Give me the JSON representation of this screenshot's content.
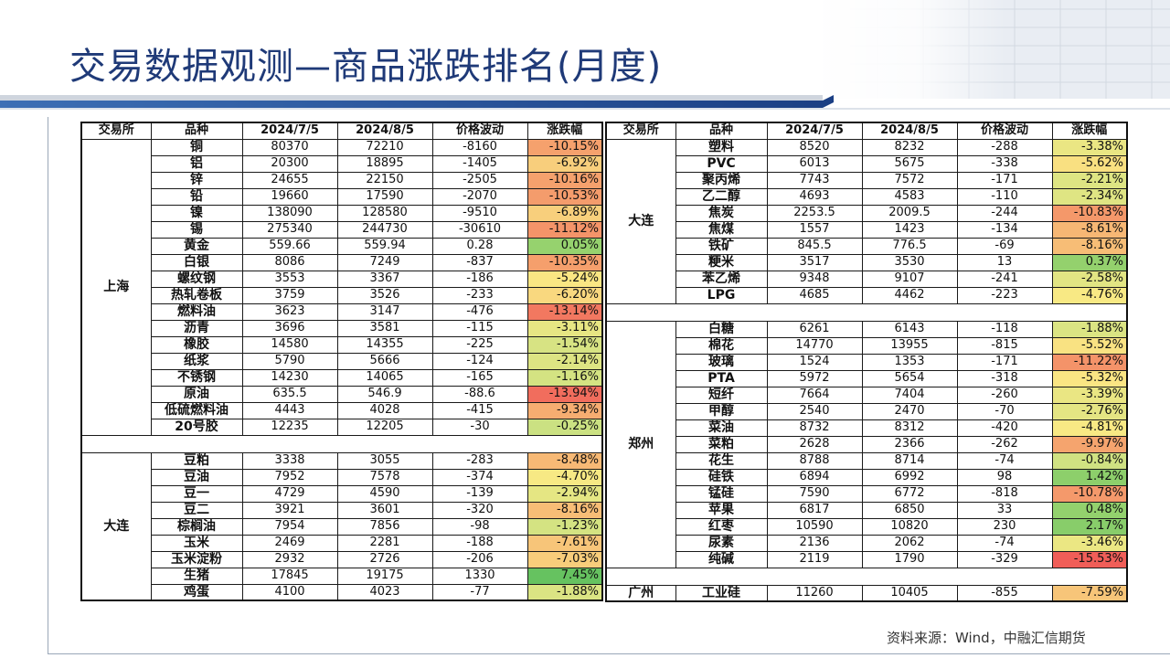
{
  "title": "交易数据观测—商品涨跌排名(月度)",
  "source": "资料来源：Wind，中融汇信期货",
  "headers": [
    "交易所",
    "品种",
    "2024/7/5",
    "2024/8/5",
    "价格波动",
    "涨跌幅"
  ],
  "left_groups": [
    {
      "exchange": "上海",
      "rows": [
        {
          "name": "铜",
          "d1": "80370",
          "d2": "72210",
          "diff": "-8160",
          "pct": "-10.15%",
          "v": -10.15
        },
        {
          "name": "铝",
          "d1": "20300",
          "d2": "18895",
          "diff": "-1405",
          "pct": "-6.92%",
          "v": -6.92
        },
        {
          "name": "锌",
          "d1": "24655",
          "d2": "22150",
          "diff": "-2505",
          "pct": "-10.16%",
          "v": -10.16
        },
        {
          "name": "铅",
          "d1": "19660",
          "d2": "17590",
          "diff": "-2070",
          "pct": "-10.53%",
          "v": -10.53
        },
        {
          "name": "镍",
          "d1": "138090",
          "d2": "128580",
          "diff": "-9510",
          "pct": "-6.89%",
          "v": -6.89
        },
        {
          "name": "锡",
          "d1": "275340",
          "d2": "244730",
          "diff": "-30610",
          "pct": "-11.12%",
          "v": -11.12
        },
        {
          "name": "黄金",
          "d1": "559.66",
          "d2": "559.94",
          "diff": "0.28",
          "pct": "0.05%",
          "v": 0.05
        },
        {
          "name": "白银",
          "d1": "8086",
          "d2": "7249",
          "diff": "-837",
          "pct": "-10.35%",
          "v": -10.35
        },
        {
          "name": "螺纹钢",
          "d1": "3553",
          "d2": "3367",
          "diff": "-186",
          "pct": "-5.24%",
          "v": -5.24
        },
        {
          "name": "热轧卷板",
          "d1": "3759",
          "d2": "3526",
          "diff": "-233",
          "pct": "-6.20%",
          "v": -6.2
        },
        {
          "name": "燃料油",
          "d1": "3623",
          "d2": "3147",
          "diff": "-476",
          "pct": "-13.14%",
          "v": -13.14
        },
        {
          "name": "沥青",
          "d1": "3696",
          "d2": "3581",
          "diff": "-115",
          "pct": "-3.11%",
          "v": -3.11
        },
        {
          "name": "橡胶",
          "d1": "14580",
          "d2": "14355",
          "diff": "-225",
          "pct": "-1.54%",
          "v": -1.54
        },
        {
          "name": "纸浆",
          "d1": "5790",
          "d2": "5666",
          "diff": "-124",
          "pct": "-2.14%",
          "v": -2.14
        },
        {
          "name": "不锈钢",
          "d1": "14230",
          "d2": "14065",
          "diff": "-165",
          "pct": "-1.16%",
          "v": -1.16
        },
        {
          "name": "原油",
          "d1": "635.5",
          "d2": "546.9",
          "diff": "-88.6",
          "pct": "-13.94%",
          "v": -13.94
        },
        {
          "name": "低硫燃料油",
          "d1": "4443",
          "d2": "4028",
          "diff": "-415",
          "pct": "-9.34%",
          "v": -9.34
        },
        {
          "name": "20号胶",
          "d1": "12235",
          "d2": "12205",
          "diff": "-30",
          "pct": "-0.25%",
          "v": -0.25
        }
      ]
    },
    {
      "exchange": "大连",
      "rows": [
        {
          "name": "豆粕",
          "d1": "3338",
          "d2": "3055",
          "diff": "-283",
          "pct": "-8.48%",
          "v": -8.48
        },
        {
          "name": "豆油",
          "d1": "7952",
          "d2": "7578",
          "diff": "-374",
          "pct": "-4.70%",
          "v": -4.7
        },
        {
          "name": "豆一",
          "d1": "4729",
          "d2": "4590",
          "diff": "-139",
          "pct": "-2.94%",
          "v": -2.94
        },
        {
          "name": "豆二",
          "d1": "3921",
          "d2": "3601",
          "diff": "-320",
          "pct": "-8.16%",
          "v": -8.16
        },
        {
          "name": "棕榈油",
          "d1": "7954",
          "d2": "7856",
          "diff": "-98",
          "pct": "-1.23%",
          "v": -1.23
        },
        {
          "name": "玉米",
          "d1": "2469",
          "d2": "2281",
          "diff": "-188",
          "pct": "-7.61%",
          "v": -7.61
        },
        {
          "name": "玉米淀粉",
          "d1": "2932",
          "d2": "2726",
          "diff": "-206",
          "pct": "-7.03%",
          "v": -7.03
        },
        {
          "name": "生猪",
          "d1": "17845",
          "d2": "19175",
          "diff": "1330",
          "pct": "7.45%",
          "v": 7.45
        },
        {
          "name": "鸡蛋",
          "d1": "4100",
          "d2": "4023",
          "diff": "-77",
          "pct": "-1.88%",
          "v": -1.88
        }
      ]
    }
  ],
  "right_groups": [
    {
      "exchange": "大连",
      "rows": [
        {
          "name": "塑料",
          "d1": "8520",
          "d2": "8232",
          "diff": "-288",
          "pct": "-3.38%",
          "v": -3.38
        },
        {
          "name": "PVC",
          "d1": "6013",
          "d2": "5675",
          "diff": "-338",
          "pct": "-5.62%",
          "v": -5.62
        },
        {
          "name": "聚丙烯",
          "d1": "7743",
          "d2": "7572",
          "diff": "-171",
          "pct": "-2.21%",
          "v": -2.21
        },
        {
          "name": "乙二醇",
          "d1": "4693",
          "d2": "4583",
          "diff": "-110",
          "pct": "-2.34%",
          "v": -2.34
        },
        {
          "name": "焦炭",
          "d1": "2253.5",
          "d2": "2009.5",
          "diff": "-244",
          "pct": "-10.83%",
          "v": -10.83
        },
        {
          "name": "焦煤",
          "d1": "1557",
          "d2": "1423",
          "diff": "-134",
          "pct": "-8.61%",
          "v": -8.61
        },
        {
          "name": "铁矿",
          "d1": "845.5",
          "d2": "776.5",
          "diff": "-69",
          "pct": "-8.16%",
          "v": -8.16
        },
        {
          "name": "粳米",
          "d1": "3517",
          "d2": "3530",
          "diff": "13",
          "pct": "0.37%",
          "v": 0.37
        },
        {
          "name": "苯乙烯",
          "d1": "9348",
          "d2": "9107",
          "diff": "-241",
          "pct": "-2.58%",
          "v": -2.58
        },
        {
          "name": "LPG",
          "d1": "4685",
          "d2": "4462",
          "diff": "-223",
          "pct": "-4.76%",
          "v": -4.76
        }
      ]
    },
    {
      "exchange": "郑州",
      "rows": [
        {
          "name": "白糖",
          "d1": "6261",
          "d2": "6143",
          "diff": "-118",
          "pct": "-1.88%",
          "v": -1.88
        },
        {
          "name": "棉花",
          "d1": "14770",
          "d2": "13955",
          "diff": "-815",
          "pct": "-5.52%",
          "v": -5.52
        },
        {
          "name": "玻璃",
          "d1": "1524",
          "d2": "1353",
          "diff": "-171",
          "pct": "-11.22%",
          "v": -11.22
        },
        {
          "name": "PTA",
          "d1": "5972",
          "d2": "5654",
          "diff": "-318",
          "pct": "-5.32%",
          "v": -5.32
        },
        {
          "name": "短纤",
          "d1": "7664",
          "d2": "7404",
          "diff": "-260",
          "pct": "-3.39%",
          "v": -3.39
        },
        {
          "name": "甲醇",
          "d1": "2540",
          "d2": "2470",
          "diff": "-70",
          "pct": "-2.76%",
          "v": -2.76
        },
        {
          "name": "菜油",
          "d1": "8732",
          "d2": "8312",
          "diff": "-420",
          "pct": "-4.81%",
          "v": -4.81
        },
        {
          "name": "菜粕",
          "d1": "2628",
          "d2": "2366",
          "diff": "-262",
          "pct": "-9.97%",
          "v": -9.97
        },
        {
          "name": "花生",
          "d1": "8788",
          "d2": "8714",
          "diff": "-74",
          "pct": "-0.84%",
          "v": -0.84
        },
        {
          "name": "硅铁",
          "d1": "6894",
          "d2": "6992",
          "diff": "98",
          "pct": "1.42%",
          "v": 1.42
        },
        {
          "name": "锰硅",
          "d1": "7590",
          "d2": "6772",
          "diff": "-818",
          "pct": "-10.78%",
          "v": -10.78
        },
        {
          "name": "苹果",
          "d1": "6817",
          "d2": "6850",
          "diff": "33",
          "pct": "0.48%",
          "v": 0.48
        },
        {
          "name": "红枣",
          "d1": "10590",
          "d2": "10820",
          "diff": "230",
          "pct": "2.17%",
          "v": 2.17
        },
        {
          "name": "尿素",
          "d1": "2136",
          "d2": "2062",
          "diff": "-74",
          "pct": "-3.46%",
          "v": -3.46
        },
        {
          "name": "纯碱",
          "d1": "2119",
          "d2": "1790",
          "diff": "-329",
          "pct": "-15.53%",
          "v": -15.53
        }
      ]
    },
    {
      "exchange": "广州",
      "rows": [
        {
          "name": "工业硅",
          "d1": "11260",
          "d2": "10405",
          "diff": "-855",
          "pct": "-7.59%",
          "v": -7.59
        }
      ]
    }
  ]
}
